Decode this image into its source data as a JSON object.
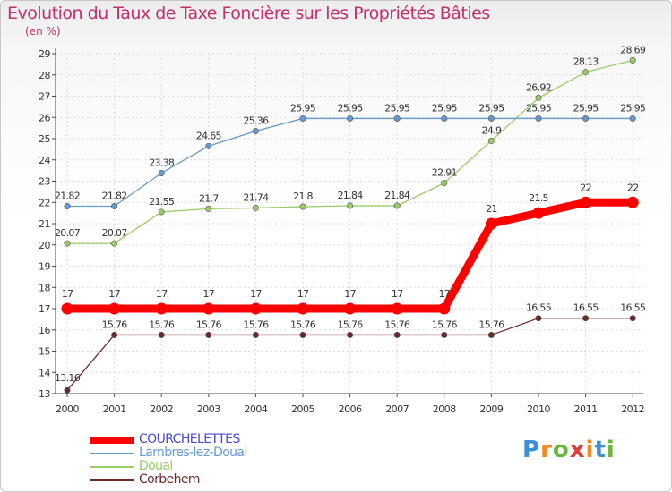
{
  "title": "Evolution du Taux de Taxe Foncière sur les Propriétés Bâties",
  "unit_label": "(en %)",
  "logo_text": "Proxiti",
  "colors": {
    "title": "#c0306a",
    "axis": "#4a4a4a",
    "grid": "#d9d9d9"
  },
  "chart_data": {
    "type": "line",
    "title": "Evolution du Taux de Taxe Foncière sur les Propriétés Bâties",
    "ylabel": "(en %)",
    "xlabel": "",
    "ylim": [
      13,
      29
    ],
    "yticks": [
      "13",
      "14",
      "15",
      "16",
      "17",
      "18",
      "19",
      "20",
      "21",
      "22",
      "23",
      "24",
      "25",
      "26",
      "27",
      "28",
      "29"
    ],
    "x": [
      "2000",
      "2001",
      "2002",
      "2003",
      "2004",
      "2005",
      "2006",
      "2007",
      "2008",
      "2009",
      "2010",
      "2011",
      "2012"
    ],
    "series": [
      {
        "name": "COURCHELETTES",
        "color": "#ff0000",
        "label_color": "#4a4acf",
        "values": [
          17,
          17,
          17,
          17,
          17,
          17,
          17,
          17,
          17,
          21,
          21.5,
          22,
          22
        ],
        "labels": [
          "17",
          "17",
          "17",
          "17",
          "17",
          "17",
          "17",
          "17",
          "17",
          "21",
          "21.5",
          "22",
          "22"
        ]
      },
      {
        "name": "Lambres-lez-Douai",
        "color": "#6699cc",
        "label_color": "#6699cc",
        "values": [
          21.82,
          21.82,
          23.38,
          24.65,
          25.36,
          25.95,
          25.95,
          25.95,
          25.95,
          25.95,
          25.95,
          25.95,
          25.95
        ],
        "labels": [
          "21.82",
          "21.82",
          "23.38",
          "24.65",
          "25.36",
          "25.95",
          "25.95",
          "25.95",
          "25.95",
          "25.95",
          "25.95",
          "25.95",
          "25.95"
        ]
      },
      {
        "name": "Douai",
        "color": "#99cc66",
        "label_color": "#99cc66",
        "values": [
          20.07,
          20.07,
          21.55,
          21.7,
          21.74,
          21.8,
          21.84,
          21.84,
          22.91,
          24.9,
          26.92,
          28.13,
          28.69
        ],
        "labels": [
          "20.07",
          "20.07",
          "21.55",
          "21.7",
          "21.74",
          "21.8",
          "21.84",
          "21.84",
          "22.91",
          "24.9",
          "26.92",
          "28.13",
          "28.69"
        ]
      },
      {
        "name": "Corbehem",
        "color": "#6b2a2a",
        "label_color": "#6b2a2a",
        "values": [
          13.16,
          15.76,
          15.76,
          15.76,
          15.76,
          15.76,
          15.76,
          15.76,
          15.76,
          15.76,
          16.55,
          16.55,
          16.55
        ],
        "labels": [
          "13.16",
          "15.76",
          "15.76",
          "15.76",
          "15.76",
          "15.76",
          "15.76",
          "15.76",
          "15.76",
          "15.76",
          "16.55",
          "16.55",
          "16.55"
        ]
      }
    ],
    "legend": [
      "COURCHELETTES",
      "Lambres-lez-Douai",
      "Douai",
      "Corbehem"
    ],
    "grid": true
  }
}
